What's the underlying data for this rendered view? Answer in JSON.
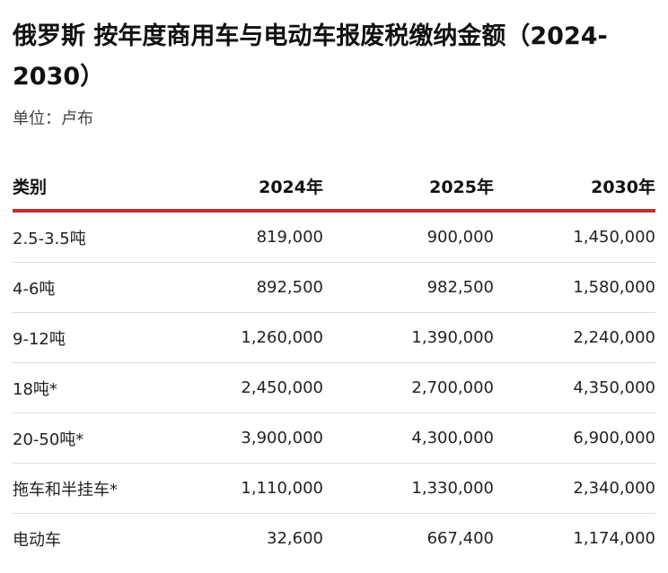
{
  "title": "俄罗斯 按年度商用车与电动车报废税缴纳金额（2024-2030）",
  "unit_label": "单位：卢布",
  "chart_data": {
    "type": "table",
    "title": "俄罗斯 按年度商用车与电动车报废税缴纳金额（2024-2030）",
    "subtitle": "单位：卢布",
    "columns": [
      "类别",
      "2024年",
      "2025年",
      "2030年"
    ],
    "rows": [
      [
        "2.5-3.5吨",
        "819,000",
        "900,000",
        "1,450,000"
      ],
      [
        "4-6吨",
        "892,500",
        "982,500",
        "1,580,000"
      ],
      [
        "9-12吨",
        "1,260,000",
        "1,390,000",
        "2,240,000"
      ],
      [
        "18吨*",
        "2,450,000",
        "2,700,000",
        "4,350,000"
      ],
      [
        "20-50吨*",
        "3,900,000",
        "4,300,000",
        "6,900,000"
      ],
      [
        "拖车和半挂车*",
        "1,110,000",
        "1,330,000",
        "2,340,000"
      ],
      [
        "电动车",
        "32,600",
        "667,400",
        "1,174,000"
      ]
    ],
    "header_rule_color": "#c0302f"
  }
}
